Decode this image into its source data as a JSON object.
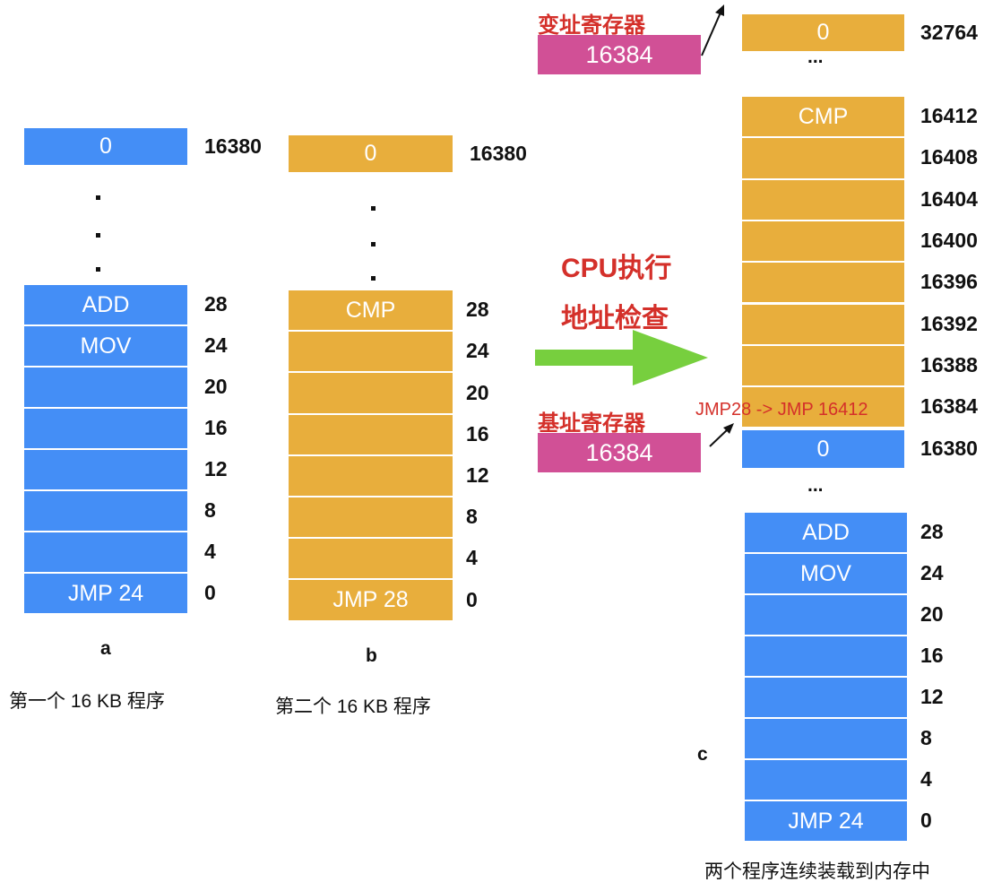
{
  "colors": {
    "blue": "#448ef6",
    "orange": "#e8ae3c",
    "pink": "#d15096",
    "green": "#77cf3e",
    "red": "#d4302a"
  },
  "program_a": {
    "letter": "a",
    "caption": "第一个 16 KB 程序",
    "top_cell": {
      "text": "0",
      "address": "16380"
    },
    "cells": [
      {
        "text": "ADD",
        "address": "28"
      },
      {
        "text": "MOV",
        "address": "24"
      },
      {
        "text": "",
        "address": "20"
      },
      {
        "text": "",
        "address": "16"
      },
      {
        "text": "",
        "address": "12"
      },
      {
        "text": "",
        "address": "8"
      },
      {
        "text": "",
        "address": "4"
      },
      {
        "text": "JMP 24",
        "address": "0"
      }
    ]
  },
  "program_b": {
    "letter": "b",
    "caption": "第二个 16 KB 程序",
    "top_cell": {
      "text": "0",
      "address": "16380"
    },
    "cells": [
      {
        "text": "CMP",
        "address": "28"
      },
      {
        "text": "",
        "address": "24"
      },
      {
        "text": "",
        "address": "20"
      },
      {
        "text": "",
        "address": "16"
      },
      {
        "text": "",
        "address": "12"
      },
      {
        "text": "",
        "address": "8"
      },
      {
        "text": "",
        "address": "4"
      },
      {
        "text": "JMP 28",
        "address": "0"
      }
    ]
  },
  "arrow": {
    "line1": "CPU执行",
    "line2": "地址检查"
  },
  "limit_register": {
    "label": "变址寄存器",
    "value": "16384"
  },
  "base_register": {
    "label": "基址寄存器",
    "value": "16384"
  },
  "memory_c": {
    "letter": "c",
    "caption": "两个程序连续装载到内存中",
    "ellipsis": "...",
    "top_cell": {
      "text": "0",
      "address": "32764"
    },
    "upper_cells": [
      {
        "text": "CMP",
        "address": "16412"
      },
      {
        "text": "",
        "address": "16408"
      },
      {
        "text": "",
        "address": "16404"
      },
      {
        "text": "",
        "address": "16400"
      },
      {
        "text": "",
        "address": "16396"
      },
      {
        "text": "",
        "address": "16392"
      },
      {
        "text": "",
        "address": "16388"
      },
      {
        "text": "",
        "address": "16384"
      }
    ],
    "relocation_note": "JMP28 -> JMP 16412",
    "boundary_cell": {
      "text": "0",
      "address": "16380"
    },
    "lower_cells": [
      {
        "text": "ADD",
        "address": "28"
      },
      {
        "text": "MOV",
        "address": "24"
      },
      {
        "text": "",
        "address": "20"
      },
      {
        "text": "",
        "address": "16"
      },
      {
        "text": "",
        "address": "12"
      },
      {
        "text": "",
        "address": "8"
      },
      {
        "text": "",
        "address": "4"
      },
      {
        "text": "JMP 24",
        "address": "0"
      }
    ]
  }
}
